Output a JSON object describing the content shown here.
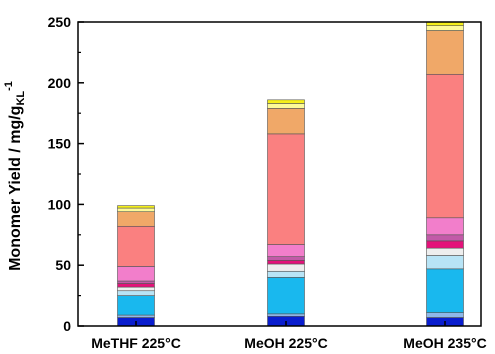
{
  "chart_data": {
    "type": "bar",
    "stacked": true,
    "title": "",
    "xlabel": "",
    "ylabel": {
      "main": "Monomer Yield / mg/g",
      "subscript": "KL",
      "superscript": "-1"
    },
    "ylim": [
      0,
      250
    ],
    "yticks": [
      "0",
      "50",
      "100",
      "150",
      "200",
      "250"
    ],
    "categories": [
      "MeTHF 225°C",
      "MeOH 225°C",
      "MeOH 235°C"
    ],
    "grid": false,
    "legend": "none",
    "segment_colors": [
      "#0a1ecf",
      "#8fb8e8",
      "#19b8ee",
      "#b8e4f6",
      "#eeeeee",
      "#e4127a",
      "#c25aa8",
      "#f27ecb",
      "#fa8080",
      "#f0a868",
      "#fdfa98",
      "#f5ef1a"
    ],
    "stacks": [
      [
        7,
        2,
        16,
        4,
        3,
        3,
        2,
        12,
        33,
        12,
        3,
        2
      ],
      [
        8,
        2,
        30,
        5,
        6,
        3,
        3,
        10,
        91,
        21,
        4,
        3
      ],
      [
        7,
        4,
        36,
        11,
        6,
        6,
        5,
        14,
        118,
        36,
        4,
        3
      ]
    ]
  }
}
